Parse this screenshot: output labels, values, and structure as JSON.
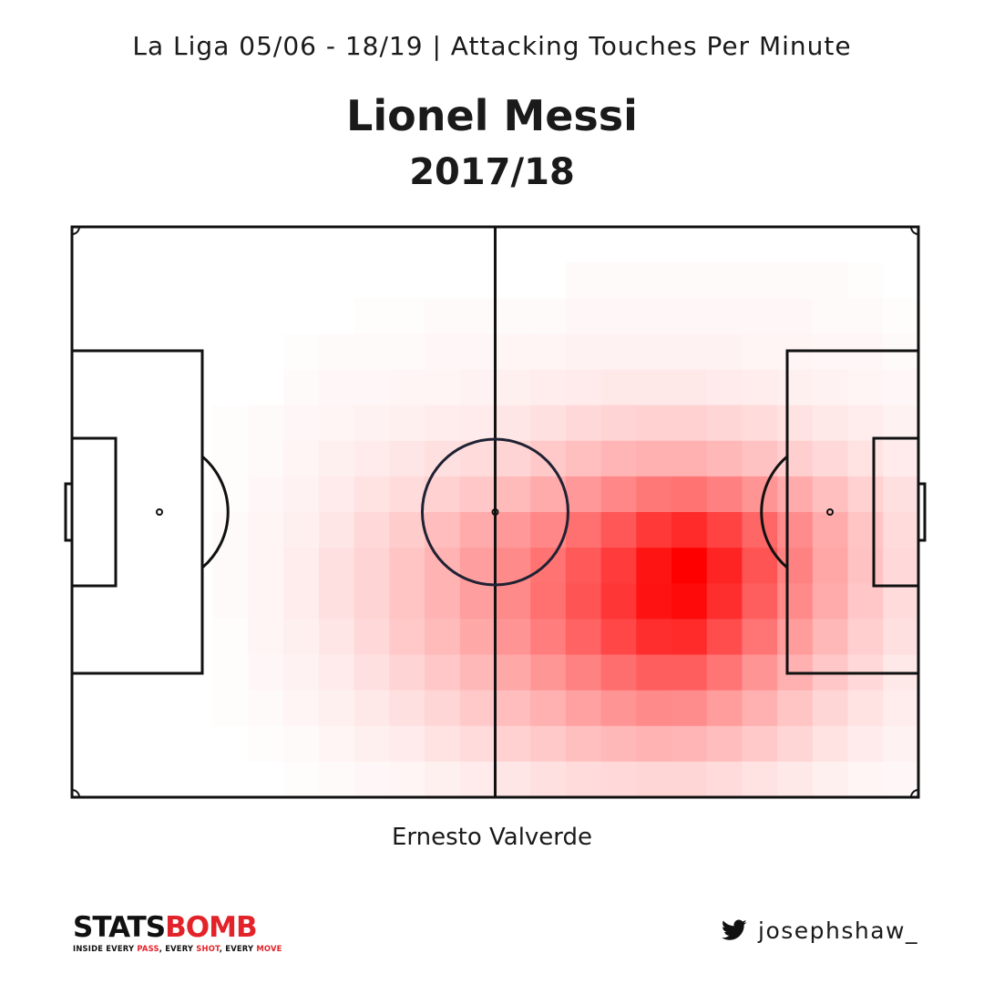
{
  "header": {
    "subtitle": "La Liga 05/06 - 18/19  |  Attacking Touches Per Minute",
    "player": "Lionel Messi",
    "season": "2017/18"
  },
  "footer": {
    "manager": "Ernesto Valverde",
    "logo": {
      "part1": "STATS",
      "part2": "BOMB",
      "tag_a": "INSIDE EVERY ",
      "tag_pass": "PASS",
      "tag_b": ", EVERY ",
      "tag_shot": "SHOT",
      "tag_c": ", EVERY ",
      "tag_move": "MOVE"
    },
    "handle_icon": "twitter-bird-icon",
    "handle": "josephshaw_"
  },
  "colors": {
    "low": "#ffffff",
    "high": "#ff0000",
    "pitch_lines": "#111111",
    "centre_circle": "#1f2233",
    "brand_red": "#e3232a"
  },
  "chart_data": {
    "type": "heatmap",
    "title": "",
    "xlabel": "",
    "ylabel": "",
    "columns": 24,
    "rows": 16,
    "orientation": "attacking left to right",
    "scale": "relative intensity 0-1",
    "values": [
      [
        0.0,
        0.0,
        0.0,
        0.0,
        0.0,
        0.0,
        0.0,
        0.0,
        0.0,
        0.0,
        0.0,
        0.0,
        0.0,
        0.0,
        0.0,
        0.0,
        0.0,
        0.0,
        0.0,
        0.0,
        0.0,
        0.0,
        0.0,
        0.0
      ],
      [
        0.0,
        0.0,
        0.0,
        0.0,
        0.0,
        0.0,
        0.0,
        0.0,
        0.0,
        0.0,
        0.0,
        0.0,
        0.0,
        0.0,
        0.02,
        0.02,
        0.02,
        0.02,
        0.02,
        0.02,
        0.02,
        0.02,
        0.01,
        0.0
      ],
      [
        0.0,
        0.0,
        0.0,
        0.0,
        0.0,
        0.0,
        0.0,
        0.0,
        0.01,
        0.01,
        0.02,
        0.02,
        0.02,
        0.02,
        0.03,
        0.03,
        0.03,
        0.03,
        0.03,
        0.03,
        0.03,
        0.02,
        0.02,
        0.01
      ],
      [
        0.0,
        0.0,
        0.0,
        0.0,
        0.0,
        0.0,
        0.01,
        0.02,
        0.02,
        0.02,
        0.03,
        0.03,
        0.04,
        0.04,
        0.05,
        0.05,
        0.05,
        0.05,
        0.05,
        0.04,
        0.04,
        0.03,
        0.03,
        0.02
      ],
      [
        0.0,
        0.0,
        0.0,
        0.0,
        0.0,
        0.0,
        0.02,
        0.03,
        0.03,
        0.04,
        0.04,
        0.05,
        0.06,
        0.07,
        0.08,
        0.09,
        0.09,
        0.09,
        0.08,
        0.07,
        0.06,
        0.05,
        0.04,
        0.03
      ],
      [
        0.0,
        0.0,
        0.0,
        0.0,
        0.01,
        0.02,
        0.03,
        0.04,
        0.05,
        0.06,
        0.07,
        0.08,
        0.1,
        0.12,
        0.15,
        0.17,
        0.18,
        0.18,
        0.16,
        0.14,
        0.11,
        0.09,
        0.07,
        0.05
      ],
      [
        0.0,
        0.0,
        0.0,
        0.0,
        0.01,
        0.02,
        0.04,
        0.06,
        0.08,
        0.1,
        0.12,
        0.14,
        0.17,
        0.21,
        0.25,
        0.29,
        0.31,
        0.31,
        0.28,
        0.24,
        0.19,
        0.15,
        0.11,
        0.08
      ],
      [
        0.0,
        0.0,
        0.0,
        0.0,
        0.01,
        0.03,
        0.05,
        0.08,
        0.11,
        0.14,
        0.18,
        0.22,
        0.27,
        0.33,
        0.4,
        0.47,
        0.53,
        0.55,
        0.5,
        0.42,
        0.33,
        0.25,
        0.18,
        0.12
      ],
      [
        0.0,
        0.0,
        0.0,
        0.0,
        0.02,
        0.04,
        0.06,
        0.1,
        0.15,
        0.2,
        0.26,
        0.33,
        0.4,
        0.47,
        0.56,
        0.66,
        0.78,
        0.83,
        0.74,
        0.6,
        0.45,
        0.33,
        0.23,
        0.14
      ],
      [
        0.0,
        0.0,
        0.0,
        0.0,
        0.02,
        0.04,
        0.07,
        0.12,
        0.17,
        0.23,
        0.3,
        0.38,
        0.46,
        0.55,
        0.65,
        0.77,
        0.92,
        1.0,
        0.86,
        0.67,
        0.49,
        0.35,
        0.24,
        0.15
      ],
      [
        0.0,
        0.0,
        0.0,
        0.0,
        0.02,
        0.04,
        0.07,
        0.12,
        0.17,
        0.23,
        0.3,
        0.38,
        0.46,
        0.56,
        0.67,
        0.79,
        0.93,
        0.96,
        0.82,
        0.63,
        0.46,
        0.33,
        0.22,
        0.14
      ],
      [
        0.0,
        0.0,
        0.0,
        0.0,
        0.01,
        0.04,
        0.06,
        0.1,
        0.15,
        0.21,
        0.27,
        0.34,
        0.42,
        0.51,
        0.61,
        0.72,
        0.82,
        0.83,
        0.7,
        0.54,
        0.39,
        0.28,
        0.19,
        0.12
      ],
      [
        0.0,
        0.0,
        0.0,
        0.0,
        0.01,
        0.03,
        0.05,
        0.08,
        0.12,
        0.17,
        0.22,
        0.28,
        0.34,
        0.41,
        0.49,
        0.57,
        0.63,
        0.63,
        0.54,
        0.42,
        0.31,
        0.22,
        0.15,
        0.09
      ],
      [
        0.0,
        0.0,
        0.0,
        0.0,
        0.01,
        0.02,
        0.04,
        0.06,
        0.09,
        0.12,
        0.16,
        0.21,
        0.26,
        0.31,
        0.37,
        0.42,
        0.46,
        0.45,
        0.39,
        0.31,
        0.23,
        0.16,
        0.11,
        0.07
      ],
      [
        0.0,
        0.0,
        0.0,
        0.0,
        0.0,
        0.01,
        0.02,
        0.04,
        0.06,
        0.08,
        0.11,
        0.14,
        0.18,
        0.21,
        0.25,
        0.28,
        0.3,
        0.29,
        0.26,
        0.21,
        0.16,
        0.11,
        0.08,
        0.05
      ],
      [
        0.0,
        0.0,
        0.0,
        0.0,
        0.0,
        0.0,
        0.01,
        0.02,
        0.03,
        0.04,
        0.06,
        0.08,
        0.1,
        0.12,
        0.14,
        0.15,
        0.16,
        0.16,
        0.14,
        0.11,
        0.09,
        0.06,
        0.04,
        0.03
      ]
    ]
  }
}
